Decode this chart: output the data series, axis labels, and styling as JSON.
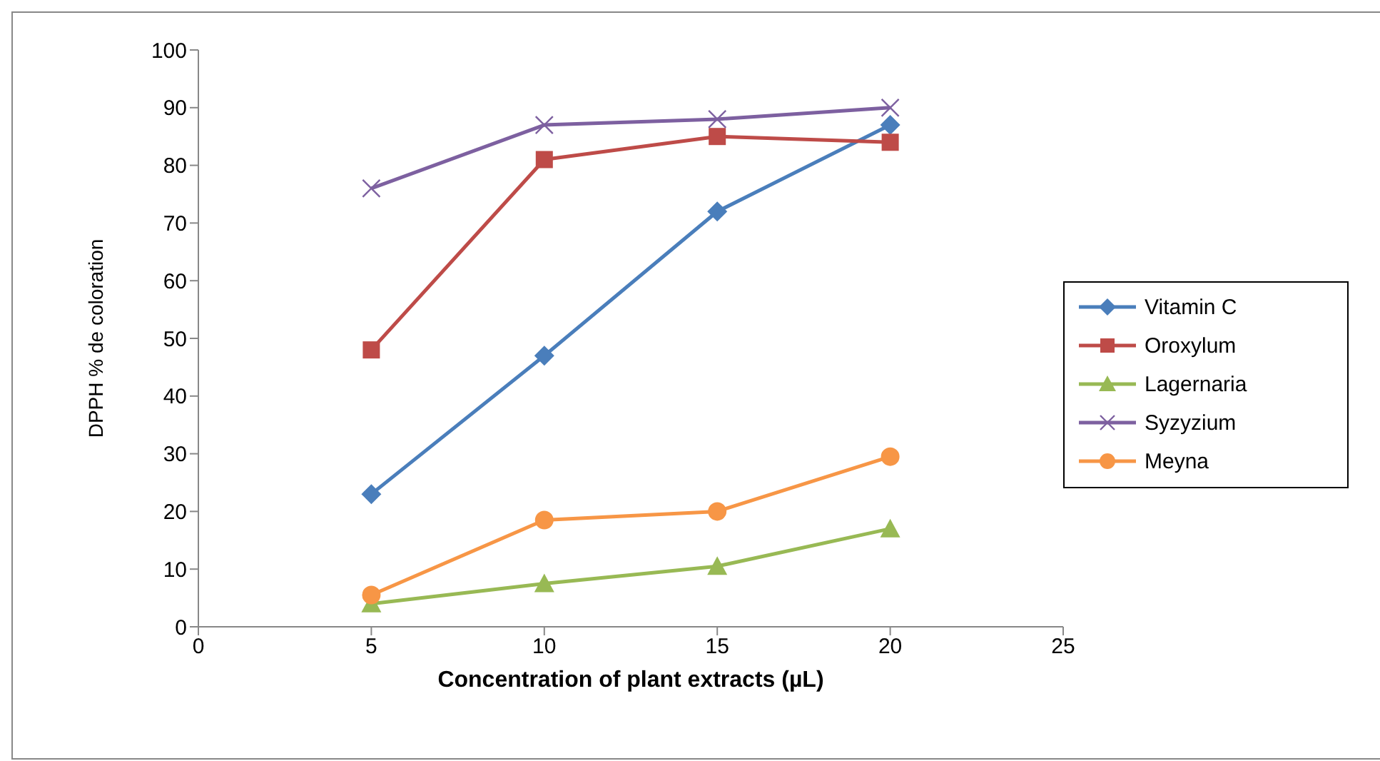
{
  "chart_data": {
    "type": "line",
    "xlabel": "Concentration of plant extracts (µL)",
    "ylabel": "DPPH % de coloration",
    "x": [
      5,
      10,
      15,
      20
    ],
    "xlim": [
      0,
      25
    ],
    "xticks": [
      0,
      5,
      10,
      15,
      20,
      25
    ],
    "ylim": [
      0,
      100
    ],
    "yticks": [
      0,
      10,
      20,
      30,
      40,
      50,
      60,
      70,
      80,
      90,
      100
    ],
    "grid": false,
    "legend": "right",
    "line_style": "solid",
    "series": [
      {
        "name": "Vitamin C",
        "color": "#4a7ebb",
        "marker": "diamond",
        "values": [
          23,
          47,
          72,
          87
        ]
      },
      {
        "name": "Oroxylum",
        "color": "#be4b48",
        "marker": "square",
        "values": [
          48,
          81,
          85,
          84
        ]
      },
      {
        "name": "Lagernaria",
        "color": "#98b954",
        "marker": "triangle",
        "values": [
          4,
          7.5,
          10.5,
          17
        ]
      },
      {
        "name": "Syzyzium",
        "color": "#7d60a0",
        "marker": "cross",
        "values": [
          76,
          87,
          88,
          90
        ]
      },
      {
        "name": "Meyna",
        "color": "#f79646",
        "marker": "circle",
        "values": [
          5.5,
          18.5,
          20,
          29.5
        ]
      }
    ]
  }
}
